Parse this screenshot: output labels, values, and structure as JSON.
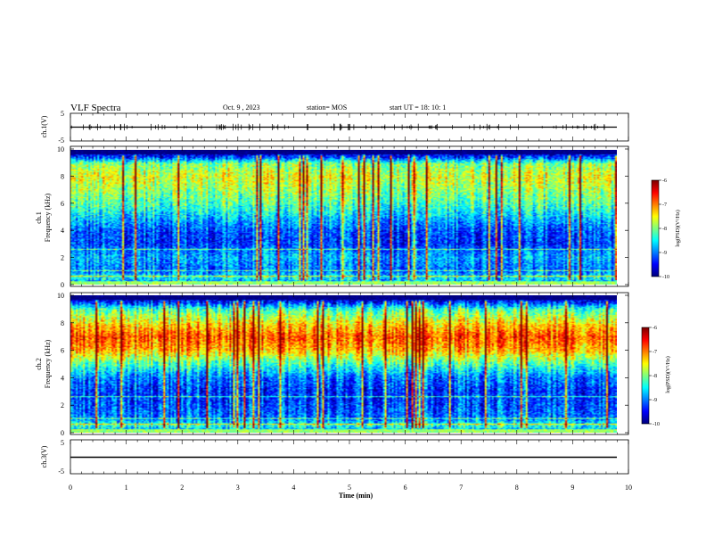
{
  "header": {
    "title": "VLF Spectra",
    "date": "Oct. 9  , 2023",
    "station": "station= MOS",
    "start": "start  UT =   18: 10: 1"
  },
  "chart_data": [
    {
      "type": "line",
      "panel": "ch1-waveform",
      "ylabel": "ch.1(V)",
      "ylim": [
        -5,
        5
      ],
      "yticks": [
        "5",
        "-5"
      ],
      "xlim": [
        0,
        10
      ],
      "series": [
        {
          "values_description_free": true,
          "level": 0
        }
      ]
    },
    {
      "type": "heatmap",
      "panel": "ch1-spectrogram",
      "ylabel": "ch.1\nFrequency  (kHz)",
      "ylabel_lines": [
        "ch.1",
        "Frequency  (kHz)"
      ],
      "ylim": [
        0,
        10
      ],
      "yticks": [
        "0",
        "2",
        "4",
        "6",
        "8",
        "10"
      ],
      "xlim": [
        0,
        9.83
      ],
      "colorbar": {
        "label": "log(PSD)(V²/Hz)",
        "ticks": [
          "-6",
          "-7",
          "-8",
          "-9",
          "-10"
        ],
        "range": [
          -10,
          -6
        ]
      },
      "profile": {
        "freq_khz": [
          0,
          0.5,
          1,
          2,
          3,
          4,
          5,
          6,
          7,
          8,
          9,
          9.5,
          10
        ],
        "log_psd": [
          -9,
          -8.5,
          -9.1,
          -8.8,
          -9.3,
          -9.2,
          -8.7,
          -8.2,
          -7.9,
          -7.6,
          -8.0,
          -9.3,
          -10
        ]
      }
    },
    {
      "type": "heatmap",
      "panel": "ch2-spectrogram",
      "ylabel": "ch.2\nFrequency  (kHz)",
      "ylabel_lines": [
        "ch.2",
        "Frequency  (kHz)"
      ],
      "ylim": [
        0,
        10
      ],
      "yticks": [
        "0",
        "2",
        "4",
        "6",
        "8",
        "10"
      ],
      "xlim": [
        0,
        9.83
      ],
      "colorbar": {
        "label": "log(PSD)(V²/Hz)",
        "ticks": [
          "-6",
          "-7",
          "-8",
          "-9",
          "-10"
        ],
        "range": [
          -10,
          -6
        ]
      },
      "profile": {
        "freq_khz": [
          0,
          0.5,
          1,
          2,
          3,
          4,
          5,
          6,
          7,
          8,
          9,
          9.5,
          10
        ],
        "log_psd": [
          -9,
          -8.3,
          -9.0,
          -9.2,
          -9.3,
          -9.0,
          -8.2,
          -7.2,
          -6.8,
          -7.4,
          -8.2,
          -9.3,
          -10
        ]
      }
    },
    {
      "type": "line",
      "panel": "ch3-waveform",
      "ylabel": "ch.3(V)",
      "ylim": [
        -5,
        5
      ],
      "yticks": [
        "5",
        "-5"
      ],
      "xlim": [
        0,
        10
      ],
      "xlabel": "Time  (min)",
      "xticks": [
        "0",
        "1",
        "2",
        "3",
        "4",
        "5",
        "6",
        "7",
        "8",
        "9",
        "10"
      ],
      "series": [
        {
          "level": 0
        }
      ]
    }
  ]
}
